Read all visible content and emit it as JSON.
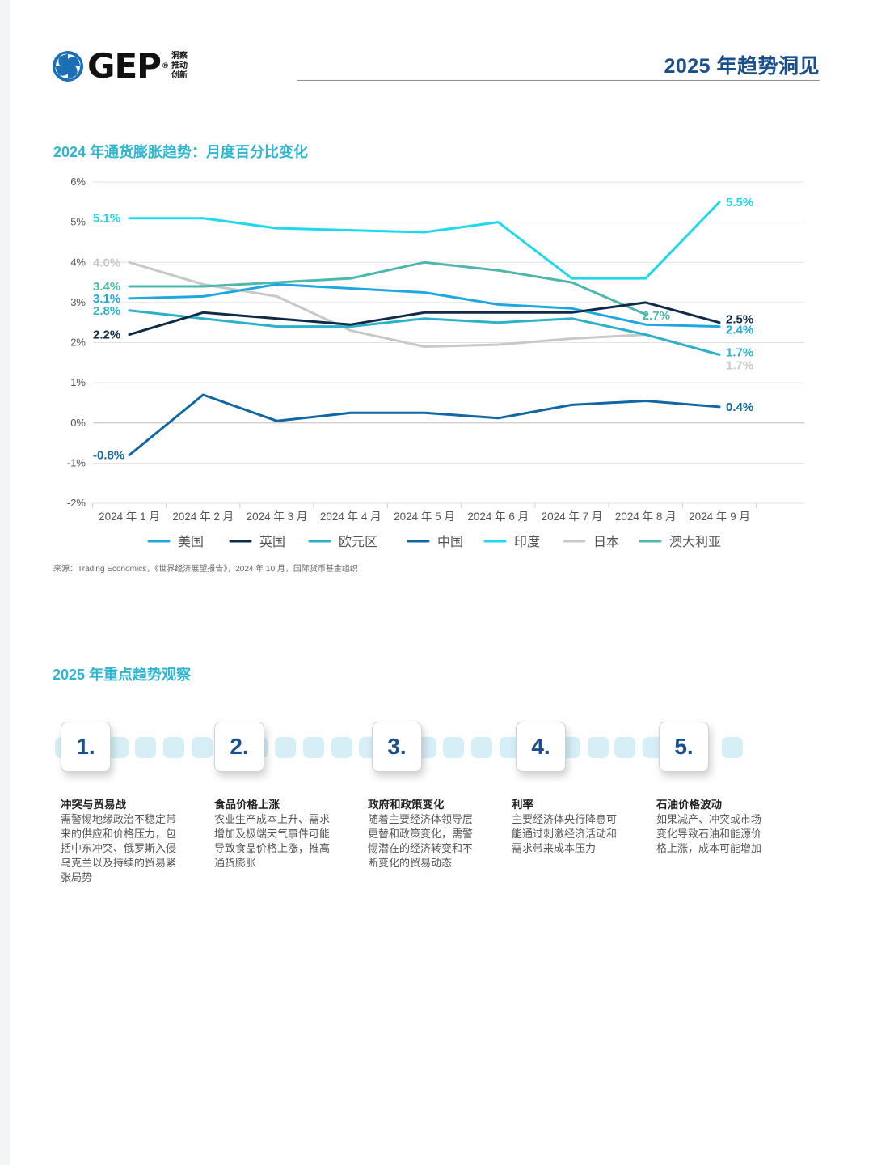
{
  "header": {
    "brand": "GEP",
    "tagline": [
      "洞察",
      "推动",
      "创新"
    ],
    "title": "2025 年趋势洞见"
  },
  "chart_section": {
    "title": "2024 年通货膨胀趋势：月度百分比变化",
    "source": "来源：Trading Economics，《世界经济展望报告》，2024 年 10 月，国际货币基金组织"
  },
  "chart_data": {
    "type": "line",
    "title": "2024 年通货膨胀趋势：月度百分比变化",
    "x": [
      "2024 年 1 月",
      "2024 年 2 月",
      "2024 年 3 月",
      "2024 年 4 月",
      "2024 年 5 月",
      "2024 年 6 月",
      "2024 年 7 月",
      "2024 年 8 月",
      "2024 年 9 月"
    ],
    "ylim": [
      -2,
      6
    ],
    "yticks": [
      6,
      5,
      4,
      3,
      2,
      1,
      0,
      -1,
      -2
    ],
    "ytick_labels": [
      "6%",
      "5%",
      "4%",
      "3%",
      "2%",
      "1%",
      "0%",
      "-1%",
      "-2%"
    ],
    "grid": true,
    "legend_position": "bottom",
    "series": [
      {
        "name": "美国",
        "color": "#1fa8e0",
        "values": [
          3.1,
          3.15,
          3.45,
          3.35,
          3.25,
          2.95,
          2.85,
          2.45,
          2.4
        ],
        "start_label": "3.1%",
        "end_label": "2.4%"
      },
      {
        "name": "英国",
        "color": "#0f2b47",
        "values": [
          2.2,
          2.75,
          2.6,
          2.45,
          2.75,
          2.75,
          2.75,
          3.0,
          2.5
        ],
        "start_label": "2.2%",
        "end_label": "2.5%"
      },
      {
        "name": "欧元区",
        "color": "#2cb1c9",
        "values": [
          2.8,
          2.6,
          2.4,
          2.4,
          2.6,
          2.5,
          2.6,
          2.2,
          1.7
        ],
        "start_label": "2.8%",
        "end_label": "1.7%"
      },
      {
        "name": "中国",
        "color": "#1167a3",
        "values": [
          -0.8,
          0.7,
          0.05,
          0.25,
          0.25,
          0.12,
          0.45,
          0.55,
          0.4
        ],
        "start_label": "-0.8%",
        "end_label": "0.4%"
      },
      {
        "name": "印度",
        "color": "#1ed8ee",
        "values": [
          5.1,
          5.1,
          4.85,
          4.8,
          4.75,
          5.0,
          3.6,
          3.6,
          5.5
        ],
        "start_label": "5.1%",
        "end_label": "5.5%"
      },
      {
        "name": "日本",
        "color": "#c8c8c8",
        "values": [
          4.0,
          3.45,
          3.15,
          2.3,
          1.9,
          1.95,
          2.1,
          2.2,
          1.7
        ],
        "start_label": "4.0%",
        "end_label": "1.7%"
      },
      {
        "name": "澳大利亚",
        "color": "#4cb8ac",
        "values": [
          3.4,
          3.4,
          3.5,
          3.6,
          4.0,
          3.8,
          3.5,
          2.7,
          null
        ],
        "start_label": "3.4%",
        "end_label": "2.7%"
      }
    ]
  },
  "trends_section": {
    "title": "2025 年重点趋势观察",
    "items": [
      {
        "number": "1.",
        "heading": "冲突与贸易战",
        "lines": [
          "需警惕地缘政治不稳定带",
          "来的供应和价格压力，包",
          "括中东冲突、俄罗斯入侵",
          "乌克兰以及持续的贸易紧",
          "张局势"
        ]
      },
      {
        "number": "2.",
        "heading": "食品价格上涨",
        "lines": [
          "农业生产成本上升、需求",
          "增加及极端天气事件可能",
          "导致食品价格上涨，推高",
          "通货膨胀"
        ]
      },
      {
        "number": "3.",
        "heading": "政府和政策变化",
        "lines": [
          "随着主要经济体领导层",
          "更替和政策变化，需警",
          "惕潜在的经济转变和不",
          "断变化的贸易动态"
        ]
      },
      {
        "number": "4.",
        "heading": "利率",
        "lines": [
          "主要经济体央行降息可",
          "能通过刺激经济活动和",
          "需求带来成本压力"
        ]
      },
      {
        "number": "5.",
        "heading": "石油价格波动",
        "lines": [
          "如果减产、冲突或市场",
          "变化导致石油和能源价",
          "格上涨，成本可能增加"
        ]
      }
    ]
  }
}
